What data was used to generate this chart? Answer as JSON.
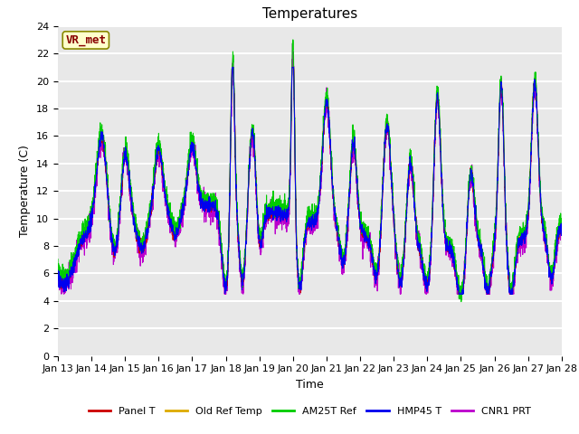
{
  "title": "Temperatures",
  "xlabel": "Time",
  "ylabel": "Temperature (C)",
  "ylim": [
    0,
    24
  ],
  "yticks": [
    0,
    2,
    4,
    6,
    8,
    10,
    12,
    14,
    16,
    18,
    20,
    22,
    24
  ],
  "x_labels": [
    "Jan 13",
    "Jan 14",
    "Jan 15",
    "Jan 16",
    "Jan 17",
    "Jan 18",
    "Jan 19",
    "Jan 20",
    "Jan 21",
    "Jan 22",
    "Jan 23",
    "Jan 24",
    "Jan 25",
    "Jan 26",
    "Jan 27",
    "Jan 28"
  ],
  "series_colors": {
    "Panel T": "#cc0000",
    "Old Ref Temp": "#ddaa00",
    "AM25T Ref": "#00cc00",
    "HMP45 T": "#0000ee",
    "CNR1 PRT": "#bb00cc"
  },
  "annotation_text": "VR_met",
  "annotation_fg": "#880000",
  "annotation_bg": "#ffffcc",
  "annotation_edge": "#888800",
  "background_color": "#e8e8e8",
  "grid_color": "#ffffff",
  "title_fontsize": 11,
  "axis_fontsize": 9,
  "tick_fontsize": 8,
  "legend_fontsize": 8
}
